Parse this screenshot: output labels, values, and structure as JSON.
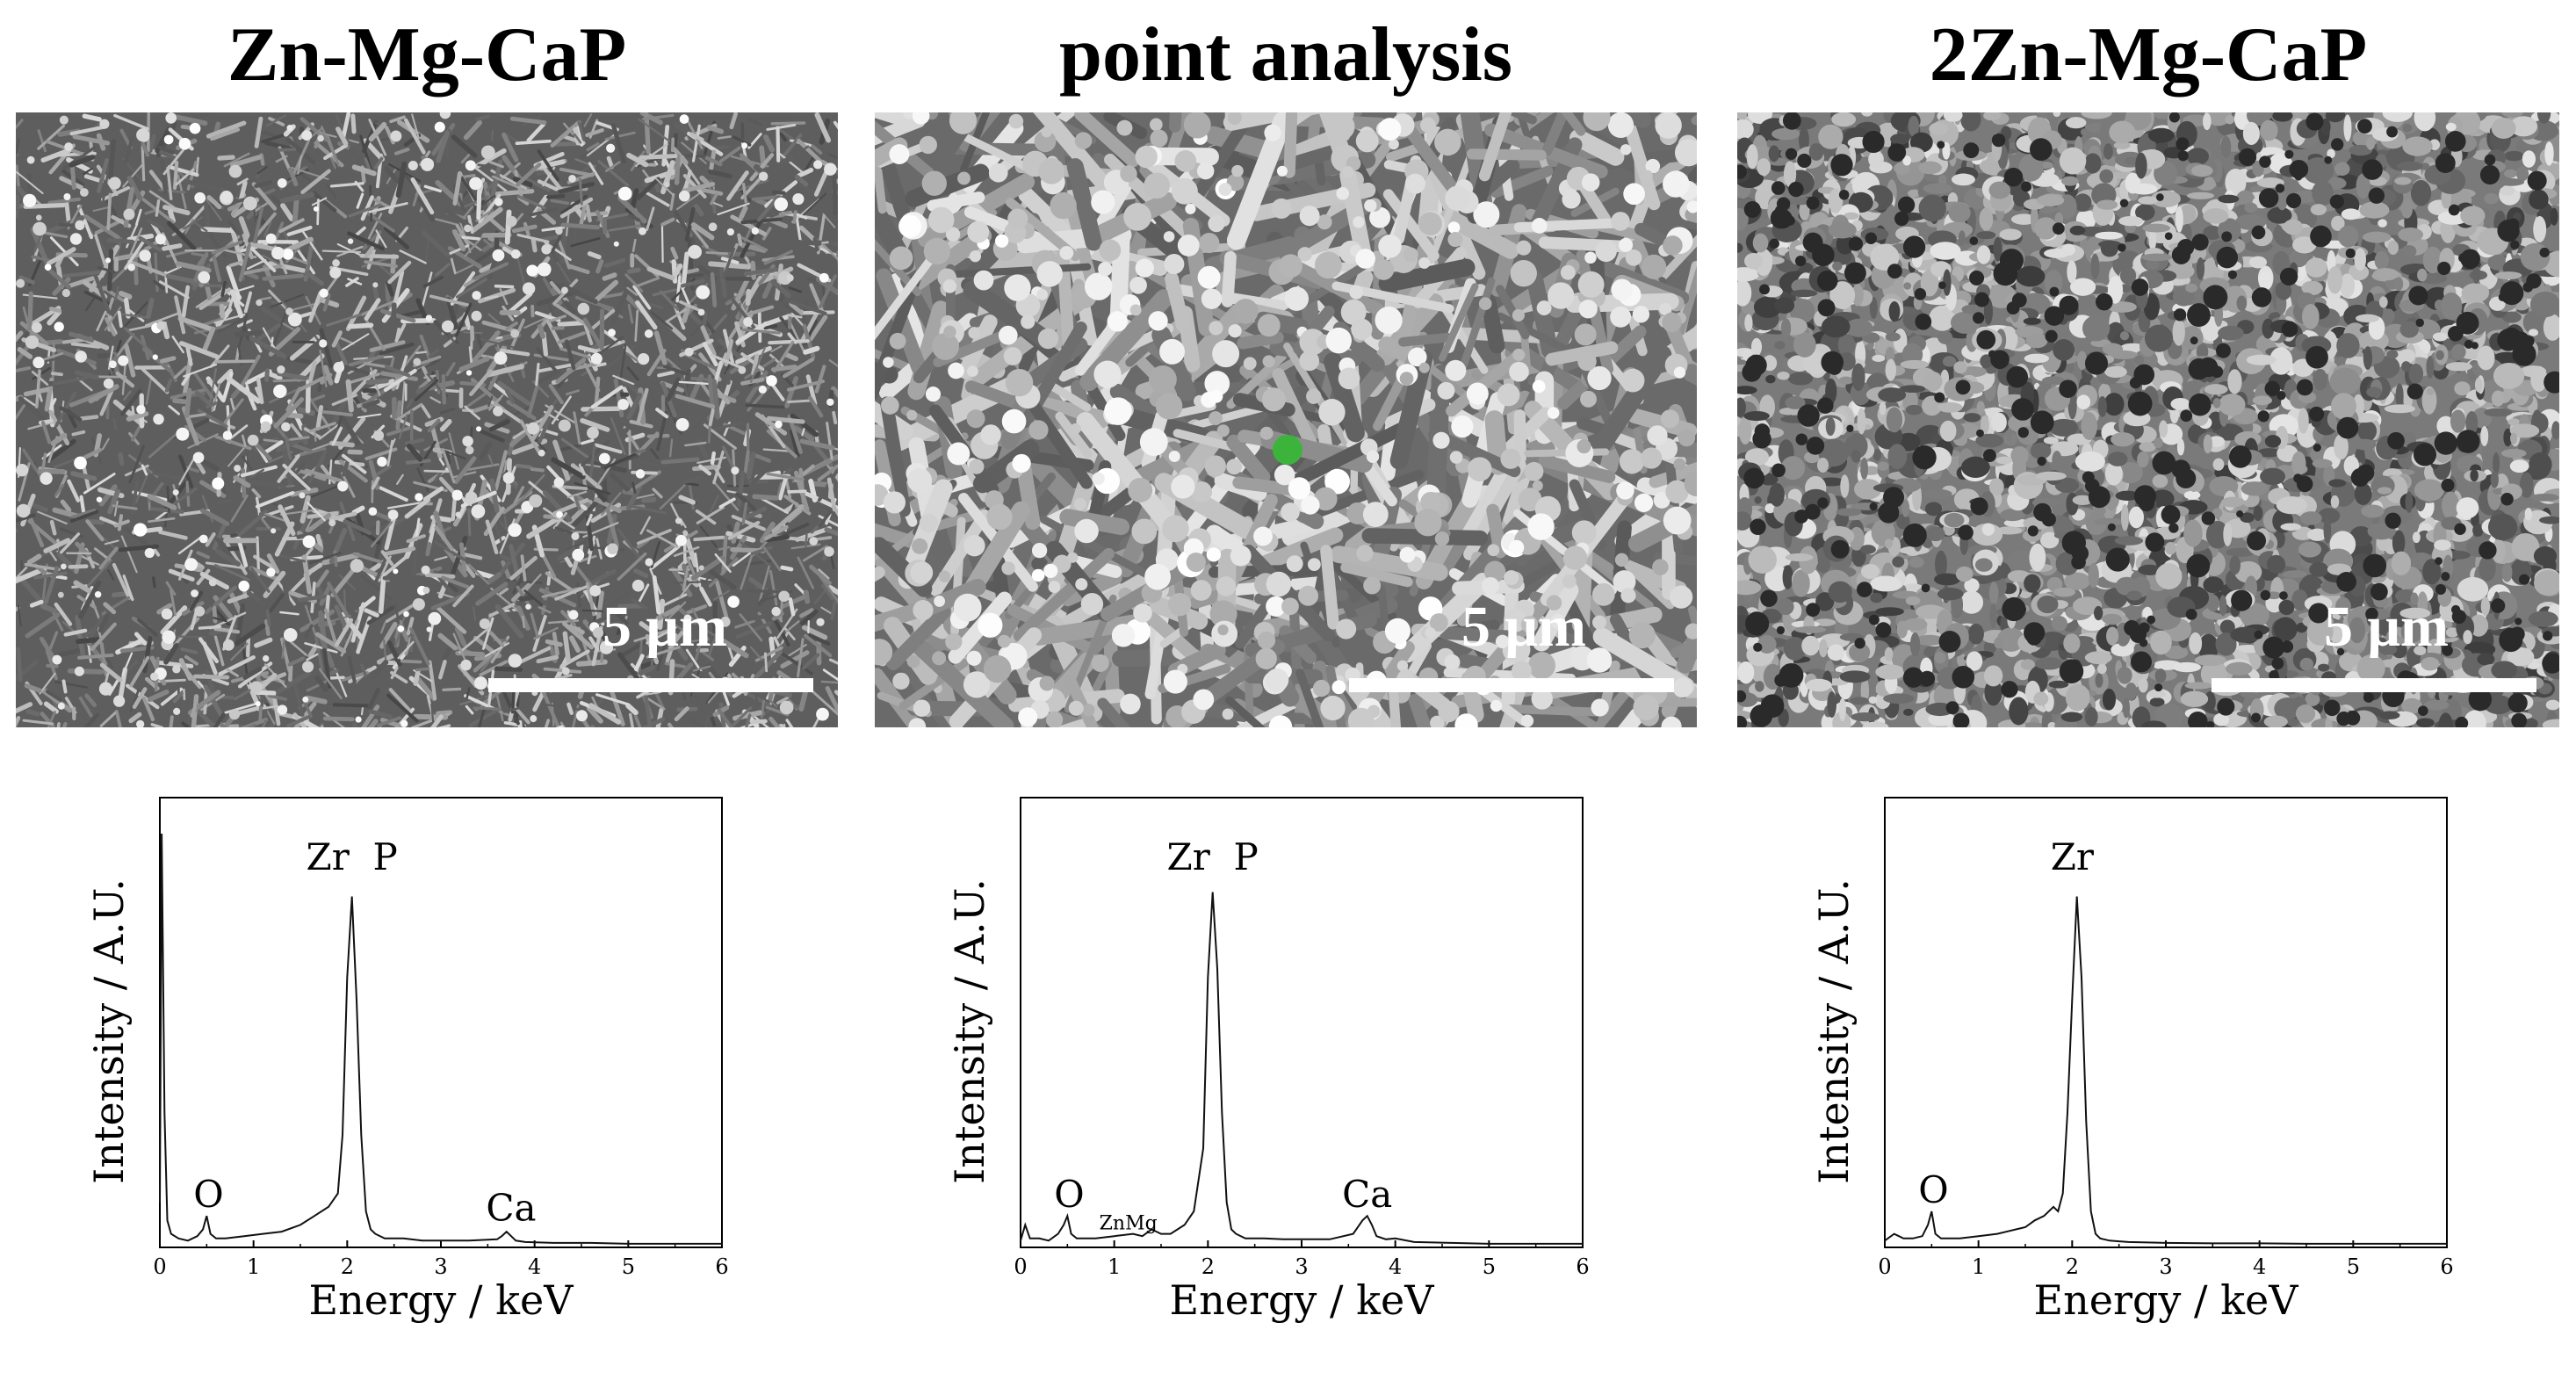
{
  "panels": [
    {
      "title": "Zn-Mg-CaP",
      "scale_label": "5 μm",
      "texture": "needle",
      "marker": false
    },
    {
      "title": "point analysis",
      "scale_label": "5 μm",
      "texture": "clusters",
      "marker": true,
      "marker_color": "#3cb43c"
    },
    {
      "title": "2Zn-Mg-CaP",
      "scale_label": "5 μm",
      "texture": "granular",
      "marker": false
    }
  ],
  "chart_data": [
    {
      "type": "line",
      "title": "",
      "xlabel": "Energy / keV",
      "ylabel": "Intensity / A.U.",
      "xlim": [
        0,
        6
      ],
      "ylim": [
        0,
        100
      ],
      "xticks": [
        "0",
        "1",
        "2",
        "3",
        "4",
        "5",
        "6"
      ],
      "series": [
        {
          "x": [
            0,
            0.02,
            0.05,
            0.08,
            0.12,
            0.2,
            0.3,
            0.4,
            0.46,
            0.5,
            0.54,
            0.6,
            0.7,
            0.9,
            1.1,
            1.3,
            1.5,
            1.65,
            1.8,
            1.9,
            1.95,
            2.0,
            2.05,
            2.1,
            2.15,
            2.2,
            2.25,
            2.3,
            2.4,
            2.6,
            2.8,
            3.0,
            3.3,
            3.6,
            3.65,
            3.7,
            3.75,
            3.8,
            3.9,
            4.2,
            4.6,
            5.0,
            5.5,
            6.0
          ],
          "y": [
            10,
            92,
            30,
            6,
            3,
            2,
            1.5,
            2.5,
            4,
            7,
            3,
            2,
            2,
            2.5,
            3,
            3.5,
            5,
            7,
            9,
            12,
            25,
            60,
            78,
            55,
            25,
            8,
            4,
            3,
            2,
            2,
            1.5,
            1.5,
            1.5,
            1.8,
            2.5,
            3.5,
            2.5,
            1.5,
            1.2,
            1,
            1,
            0.8,
            0.8,
            0.8
          ]
        }
      ],
      "annotations": [
        {
          "text": "O",
          "x": 0.52,
          "y": 9,
          "size": "large"
        },
        {
          "text": "Zr  P",
          "x": 2.05,
          "y": 84,
          "size": "large"
        },
        {
          "text": "Ca",
          "x": 3.75,
          "y": 6,
          "size": "large"
        }
      ]
    },
    {
      "type": "line",
      "title": "",
      "xlabel": "Energy / keV",
      "ylabel": "Intensity / A.U.",
      "xlim": [
        0,
        6
      ],
      "ylim": [
        0,
        100
      ],
      "xticks": [
        "0",
        "1",
        "2",
        "3",
        "4",
        "5",
        "6"
      ],
      "series": [
        {
          "x": [
            0,
            0.05,
            0.1,
            0.2,
            0.3,
            0.4,
            0.46,
            0.5,
            0.54,
            0.6,
            0.8,
            1.0,
            1.2,
            1.3,
            1.4,
            1.5,
            1.6,
            1.75,
            1.85,
            1.95,
            2.0,
            2.05,
            2.1,
            2.15,
            2.2,
            2.25,
            2.3,
            2.4,
            2.6,
            2.8,
            3.0,
            3.3,
            3.55,
            3.65,
            3.7,
            3.75,
            3.8,
            3.9,
            4.0,
            4.2,
            4.6,
            5.0,
            5.5,
            6.0
          ],
          "y": [
            1.5,
            5,
            2,
            2,
            1.5,
            3,
            5,
            7,
            3,
            2,
            2,
            2.5,
            3,
            2.5,
            4,
            3,
            3,
            5,
            8,
            22,
            60,
            79,
            62,
            30,
            10,
            4,
            3,
            2,
            2,
            1.8,
            1.8,
            1.8,
            3,
            6,
            7,
            5,
            2.5,
            1.8,
            2,
            1.2,
            1,
            0.8,
            0.8,
            0.8
          ]
        }
      ],
      "annotations": [
        {
          "text": "O",
          "x": 0.52,
          "y": 9,
          "size": "large"
        },
        {
          "text": "ZnMg",
          "x": 1.15,
          "y": 4,
          "size": "small"
        },
        {
          "text": "Zr  P",
          "x": 2.05,
          "y": 84,
          "size": "large"
        },
        {
          "text": "Ca",
          "x": 3.7,
          "y": 9,
          "size": "large"
        }
      ]
    },
    {
      "type": "line",
      "title": "",
      "xlabel": "Energy / keV",
      "ylabel": "Intensity / A.U.",
      "xlim": [
        0,
        6
      ],
      "ylim": [
        0,
        100
      ],
      "xticks": [
        "0",
        "1",
        "2",
        "3",
        "4",
        "5",
        "6"
      ],
      "series": [
        {
          "x": [
            0,
            0.1,
            0.2,
            0.3,
            0.4,
            0.46,
            0.5,
            0.54,
            0.6,
            0.8,
            1.0,
            1.2,
            1.4,
            1.5,
            1.6,
            1.7,
            1.8,
            1.85,
            1.9,
            1.95,
            2.0,
            2.05,
            2.1,
            2.15,
            2.2,
            2.25,
            2.3,
            2.4,
            2.6,
            3.0,
            3.5,
            4.0,
            4.5,
            5.0,
            5.5,
            6.0
          ],
          "y": [
            1.5,
            3,
            2,
            2,
            2.5,
            5,
            8,
            3,
            2,
            2,
            2.5,
            3,
            4,
            4.5,
            6,
            7,
            9,
            8,
            12,
            30,
            55,
            78,
            60,
            28,
            8,
            3,
            2,
            1.5,
            1.2,
            1,
            0.9,
            0.9,
            0.8,
            0.8,
            0.8,
            0.8
          ]
        }
      ],
      "annotations": [
        {
          "text": "O",
          "x": 0.52,
          "y": 10,
          "size": "large"
        },
        {
          "text": "Zr",
          "x": 2.0,
          "y": 84,
          "size": "large"
        }
      ]
    }
  ]
}
